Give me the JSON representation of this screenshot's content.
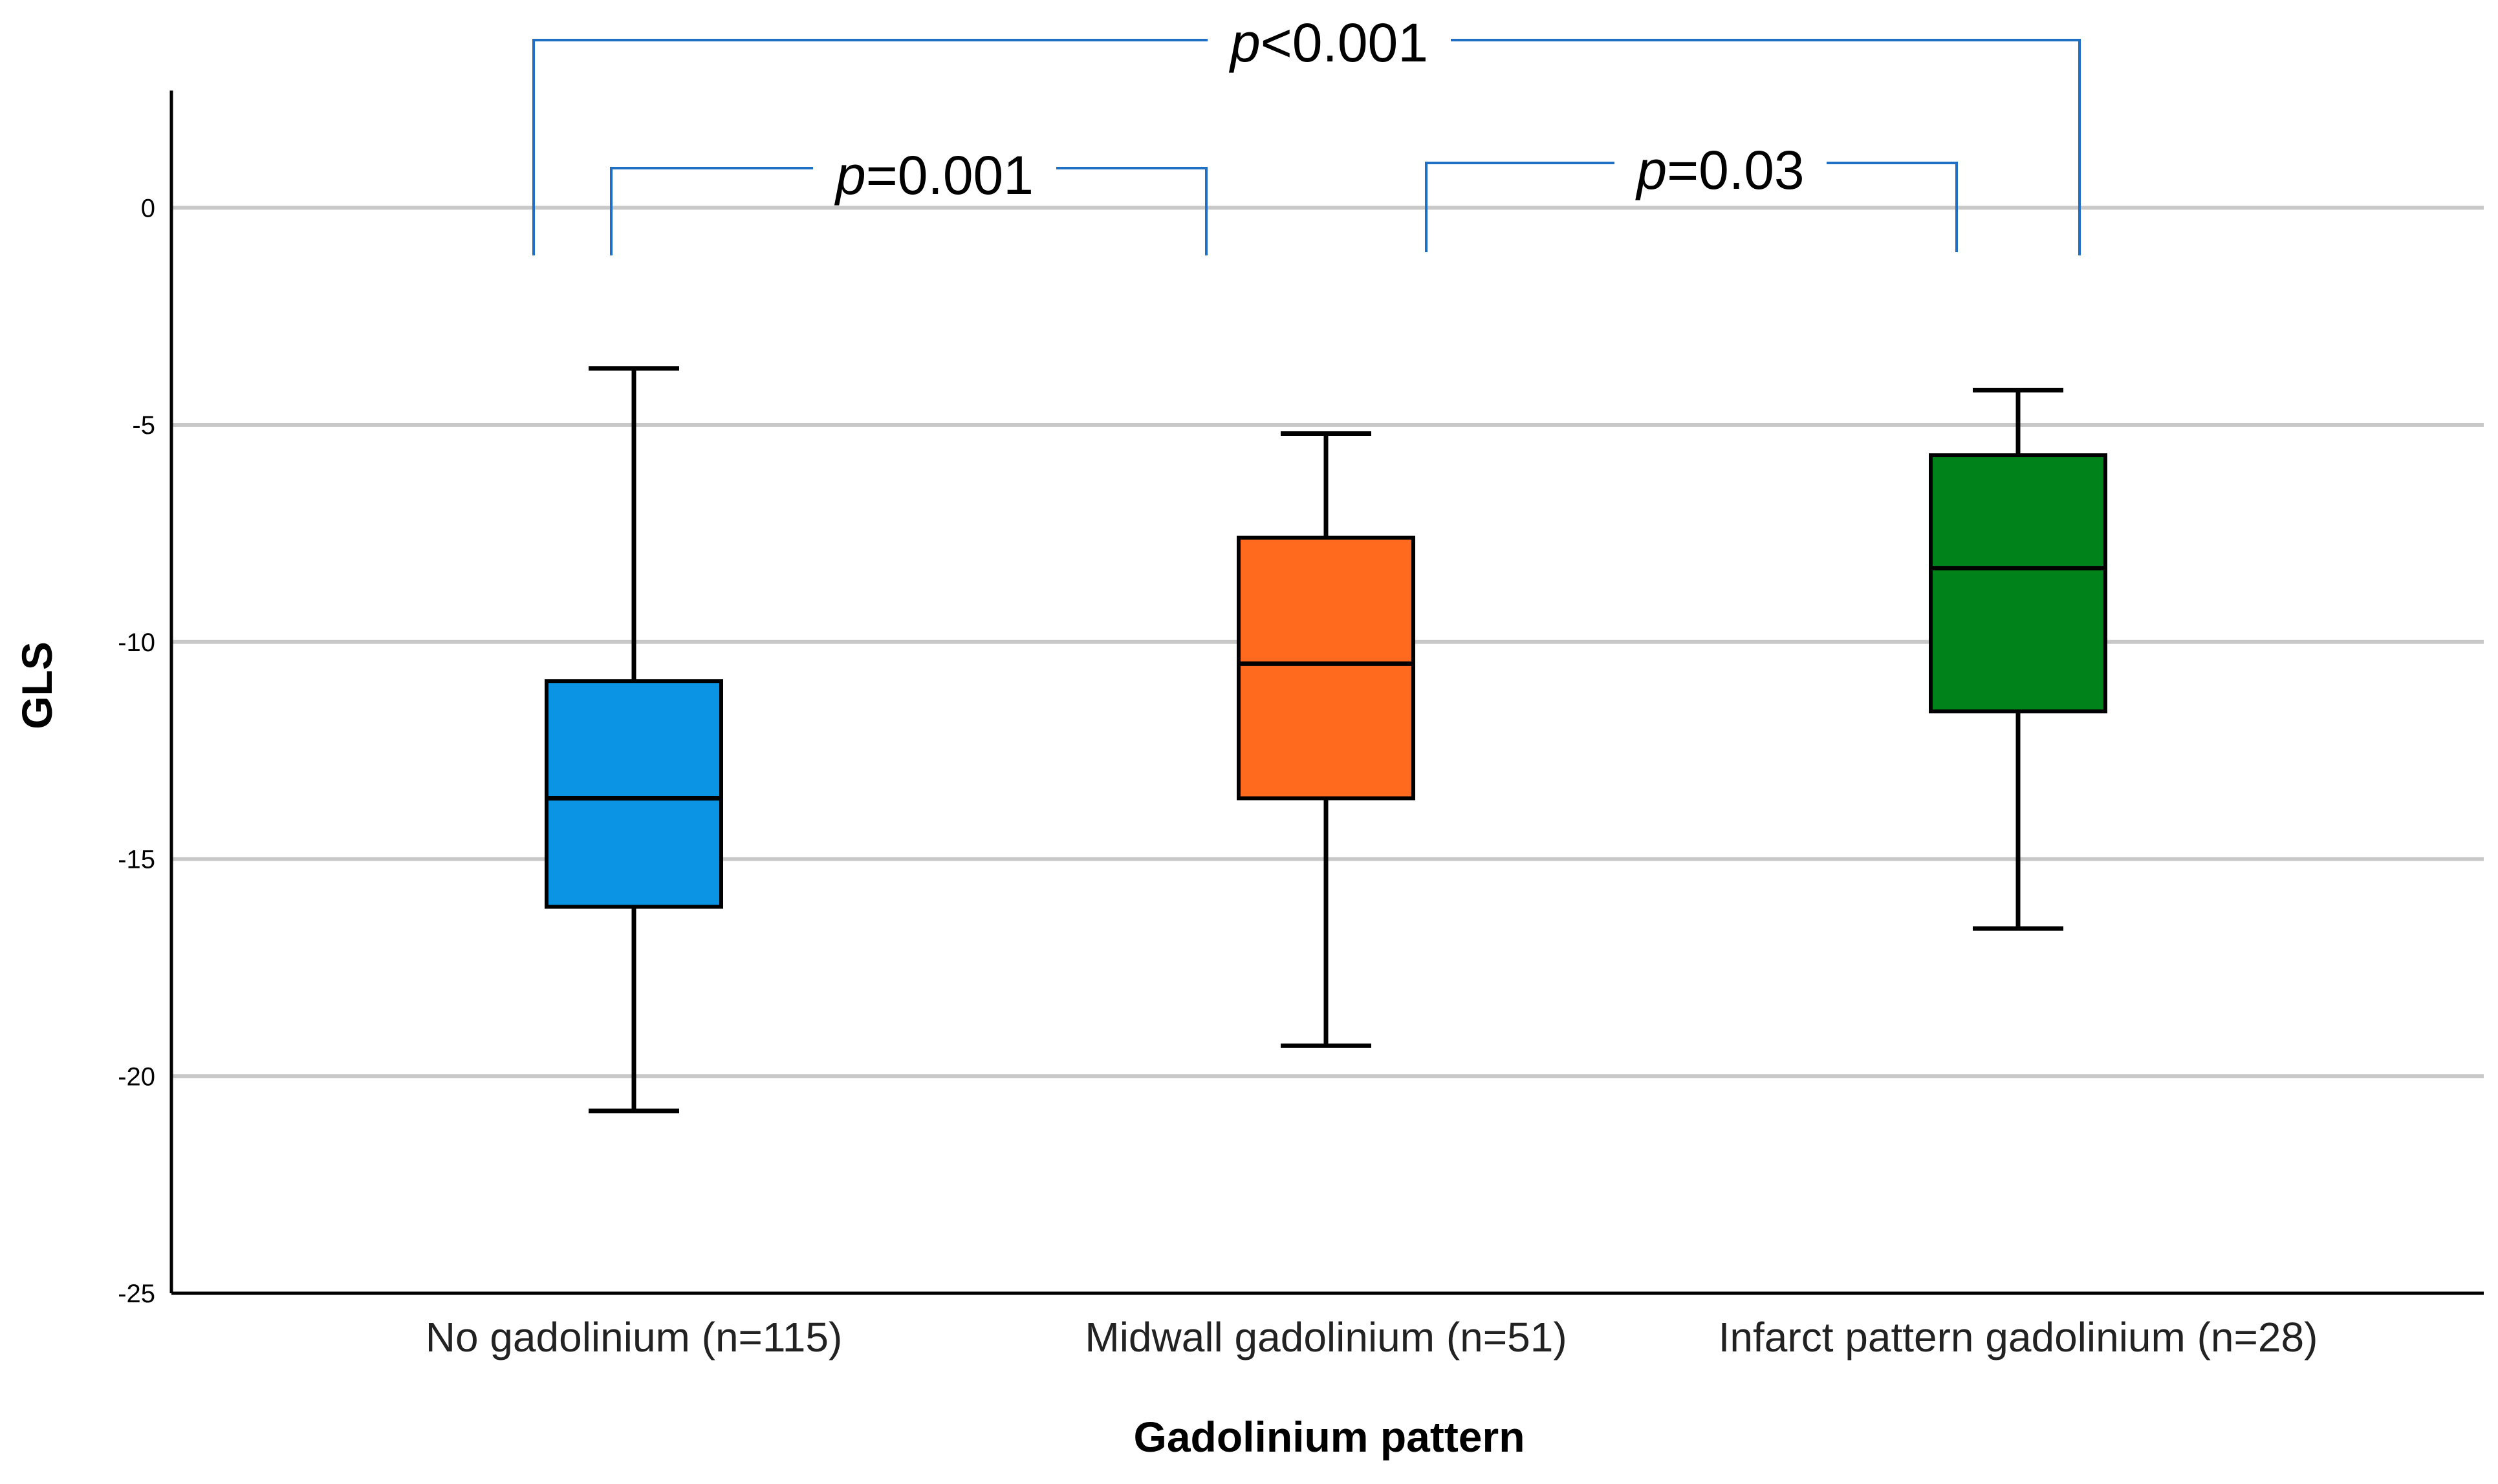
{
  "chart_data": {
    "type": "box",
    "title": "",
    "xlabel": "Gadolinium pattern",
    "ylabel": "GLS",
    "ylim": [
      -25,
      2.7
    ],
    "yticks": [
      0,
      -5,
      -10,
      -15,
      -20,
      -25
    ],
    "grid": true,
    "categories": [
      "No gadolinium (n=115)",
      "Midwall gadolinium (n=51)",
      "Infarct pattern gadolinium (n=28)"
    ],
    "boxes": [
      {
        "min": -20.8,
        "q1": -16.1,
        "median": -13.6,
        "q3": -10.9,
        "max": -3.7,
        "color": "#0a94e3"
      },
      {
        "min": -19.3,
        "q1": -13.6,
        "median": -10.5,
        "q3": -7.6,
        "max": -5.2,
        "color": "#ff6a1f"
      },
      {
        "min": -16.6,
        "q1": -11.6,
        "median": -8.3,
        "q3": -5.7,
        "max": -4.2,
        "color": "#00821a"
      }
    ],
    "annotations": [
      {
        "from": 0,
        "to": 2,
        "level": "top",
        "prefix": "p",
        "rest": "<0.001"
      },
      {
        "from": 0,
        "to": 1,
        "level": "low",
        "prefix": "p",
        "rest": "=0.001"
      },
      {
        "from": 1,
        "to": 2,
        "level": "low",
        "prefix": "p",
        "rest": "=0.03"
      }
    ]
  }
}
